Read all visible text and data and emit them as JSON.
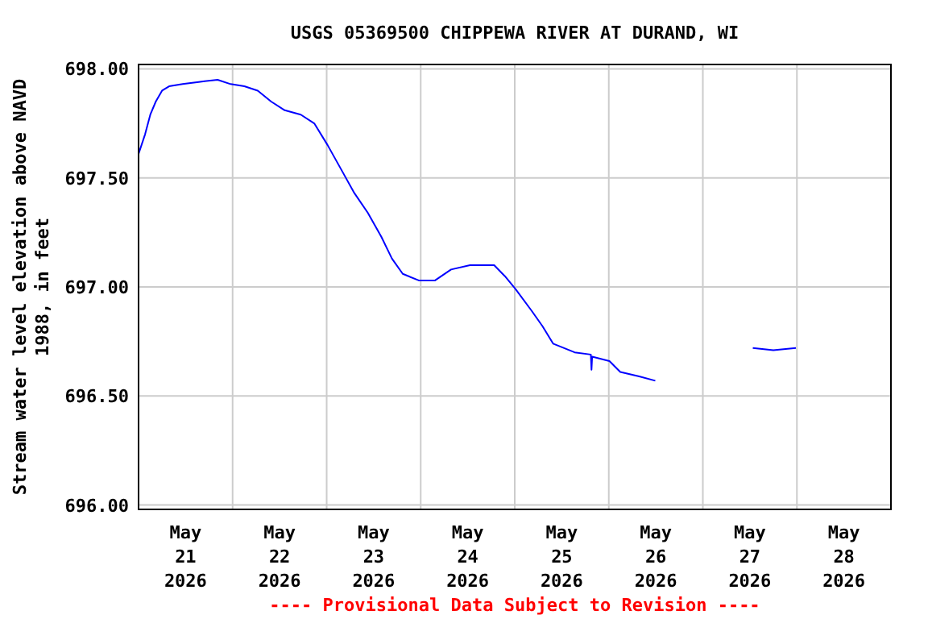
{
  "chart_data": {
    "type": "line",
    "title": "USGS 05369500 CHIPPEWA RIVER AT DURAND, WI",
    "ylabel": "Stream water level elevation above NAVD\n1988, in feet",
    "annotations": [
      "---- Provisional Data Subject to Revision ----"
    ],
    "x": [
      "2026-05-21T00:00",
      "2026-05-21T01:40",
      "2026-05-21T03:00",
      "2026-05-21T04:24",
      "2026-05-21T06:00",
      "2026-05-21T07:48",
      "2026-05-21T11:15",
      "2026-05-21T15:20",
      "2026-05-21T20:10",
      "2026-05-21T23:30",
      "2026-05-22T03:00",
      "2026-05-22T06:25",
      "2026-05-22T09:50",
      "2026-05-22T13:18",
      "2026-05-22T17:24",
      "2026-05-22T20:50",
      "2026-05-23T00:15",
      "2026-05-23T03:40",
      "2026-05-23T07:05",
      "2026-05-23T10:30",
      "2026-05-23T13:57",
      "2026-05-23T16:40",
      "2026-05-23T19:25",
      "2026-05-23T23:30",
      "2026-05-24T03:40",
      "2026-05-24T07:45",
      "2026-05-24T12:35",
      "2026-05-24T18:45",
      "2026-05-24T21:27",
      "2026-05-25T00:12",
      "2026-05-25T04:20",
      "2026-05-25T07:05",
      "2026-05-25T09:47",
      "2026-05-25T15:17",
      "2026-05-25T19:25",
      "2026-05-25T19:35",
      "2026-05-25T19:45",
      "2026-05-26T00:10",
      "2026-05-26T02:56",
      "2026-05-26T07:45",
      "2026-05-26T11:52",
      "2026-05-27T00:00",
      "2026-05-27T12:45",
      "2026-05-27T18:00",
      "2026-05-27T23:45"
    ],
    "series": [
      {
        "color": "#0000ff",
        "values": [
          697.61,
          697.7,
          697.79,
          697.85,
          697.9,
          697.92,
          697.93,
          697.94,
          697.95,
          697.93,
          697.92,
          697.9,
          697.85,
          697.81,
          697.79,
          697.75,
          697.65,
          697.54,
          697.43,
          697.34,
          697.23,
          697.13,
          697.06,
          697.03,
          697.03,
          697.08,
          697.1,
          697.1,
          697.05,
          696.99,
          696.89,
          696.82,
          696.74,
          696.7,
          696.69,
          696.62,
          696.68,
          696.66,
          696.61,
          696.59,
          696.57,
          null,
          696.72,
          696.71,
          696.72
        ]
      }
    ],
    "xlim": [
      "2026-05-21T00:00",
      "2026-05-29T00:00"
    ],
    "xticks": [
      {
        "value": "2026-05-21T12:00",
        "label": "May\n21\n2026"
      },
      {
        "value": "2026-05-22T12:00",
        "label": "May\n22\n2026"
      },
      {
        "value": "2026-05-23T12:00",
        "label": "May\n23\n2026"
      },
      {
        "value": "2026-05-24T12:00",
        "label": "May\n24\n2026"
      },
      {
        "value": "2026-05-25T12:00",
        "label": "May\n25\n2026"
      },
      {
        "value": "2026-05-26T12:00",
        "label": "May\n26\n2026"
      },
      {
        "value": "2026-05-27T12:00",
        "label": "May\n27\n2026"
      },
      {
        "value": "2026-05-28T12:00",
        "label": "May\n28\n2026"
      },
      {
        "value": "2026-05-22T00:00",
        "label": null
      },
      {
        "value": "2026-05-23T00:00",
        "label": null
      },
      {
        "value": "2026-05-24T00:00",
        "label": null
      },
      {
        "value": "2026-05-25T00:00",
        "label": null
      },
      {
        "value": "2026-05-26T00:00",
        "label": null
      },
      {
        "value": "2026-05-27T00:00",
        "label": null
      },
      {
        "value": "2026-05-28T00:00",
        "label": null
      }
    ],
    "ylim": [
      695.98,
      698.02
    ],
    "yticks": [
      {
        "value": 696,
        "label": "696.00"
      },
      {
        "value": 696.5,
        "label": "696.50"
      },
      {
        "value": 697,
        "label": "697.00"
      },
      {
        "value": 697.5,
        "label": "697.50"
      },
      {
        "value": 698,
        "label": "698.00"
      }
    ],
    "grid": true,
    "marker": "none",
    "line_style": "solid"
  }
}
